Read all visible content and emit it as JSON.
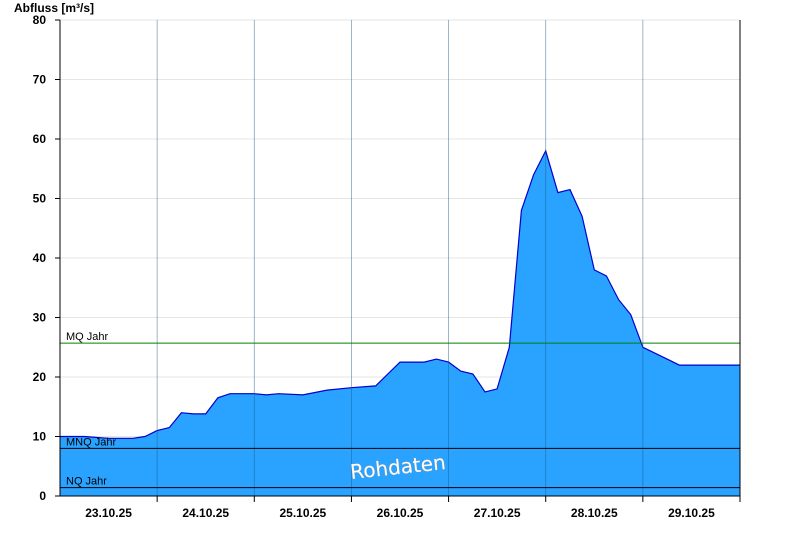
{
  "chart_data": {
    "type": "area",
    "ylabel": "Abfluss [m³/s]",
    "ylim": [
      0,
      80
    ],
    "yticks": [
      0,
      10,
      20,
      30,
      40,
      50,
      60,
      70,
      80
    ],
    "xlim": [
      "2025-10-22T12:00",
      "2025-10-29T12:00"
    ],
    "x_day_boundaries": [
      "2025-10-23T12:00",
      "2025-10-24T12:00",
      "2025-10-25T12:00",
      "2025-10-26T12:00",
      "2025-10-27T12:00",
      "2025-10-28T12:00",
      "2025-10-29T12:00"
    ],
    "x_tick_labels": [
      {
        "x": "2025-10-23T00:00",
        "label": "23.10.25"
      },
      {
        "x": "2025-10-24T00:00",
        "label": "24.10.25"
      },
      {
        "x": "2025-10-25T00:00",
        "label": "25.10.25"
      },
      {
        "x": "2025-10-26T00:00",
        "label": "26.10.25"
      },
      {
        "x": "2025-10-27T00:00",
        "label": "27.10.25"
      },
      {
        "x": "2025-10-28T00:00",
        "label": "28.10.25"
      },
      {
        "x": "2025-10-29T00:00",
        "label": "29.10.25"
      }
    ],
    "grid": true,
    "fill_color": "#29a3ff",
    "line_color": "#0000cc",
    "series": [
      {
        "x": [
          "2025-10-22T12:00",
          "2025-10-22T18:00",
          "2025-10-23T00:00",
          "2025-10-23T06:00",
          "2025-10-23T09:00",
          "2025-10-23T12:00",
          "2025-10-23T15:00",
          "2025-10-23T18:00",
          "2025-10-23T21:00",
          "2025-10-24T00:00",
          "2025-10-24T03:00",
          "2025-10-24T06:00",
          "2025-10-24T09:00",
          "2025-10-24T12:00",
          "2025-10-24T15:00",
          "2025-10-24T18:00",
          "2025-10-25T00:00",
          "2025-10-25T06:00",
          "2025-10-25T12:00",
          "2025-10-25T18:00",
          "2025-10-26T00:00",
          "2025-10-26T06:00",
          "2025-10-26T09:00",
          "2025-10-26T12:00",
          "2025-10-26T15:00",
          "2025-10-26T18:00",
          "2025-10-26T21:00",
          "2025-10-27T00:00",
          "2025-10-27T03:00",
          "2025-10-27T06:00",
          "2025-10-27T09:00",
          "2025-10-27T12:00",
          "2025-10-27T15:00",
          "2025-10-27T18:00",
          "2025-10-27T21:00",
          "2025-10-28T00:00",
          "2025-10-28T03:00",
          "2025-10-28T06:00",
          "2025-10-28T09:00",
          "2025-10-28T12:00",
          "2025-10-28T15:00",
          "2025-10-28T18:00",
          "2025-10-28T21:00",
          "2025-10-29T00:00",
          "2025-10-29T03:00",
          "2025-10-29T06:00",
          "2025-10-29T09:00",
          "2025-10-29T12:00"
        ],
        "values": [
          10,
          10,
          9.7,
          9.7,
          10,
          11,
          11.5,
          14,
          13.8,
          13.8,
          16.5,
          17.2,
          17.2,
          17.2,
          17,
          17.2,
          17,
          17.8,
          18.2,
          18.5,
          22.5,
          22.5,
          23,
          22.5,
          21,
          20.5,
          17.5,
          18,
          25,
          48,
          54,
          58,
          51,
          51.5,
          47,
          38,
          37,
          33,
          30.5,
          25,
          24,
          23,
          22,
          22,
          22,
          22,
          22,
          22
        ]
      }
    ],
    "reference_lines": [
      {
        "name": "MQ Jahr",
        "value": 25.7,
        "color": "#008000"
      },
      {
        "name": "MNQ Jahr",
        "value": 8.0,
        "color": "#000000"
      },
      {
        "name": "NQ Jahr",
        "value": 1.4,
        "color": "#000000"
      }
    ],
    "annotations": [
      "Rohdaten"
    ]
  }
}
